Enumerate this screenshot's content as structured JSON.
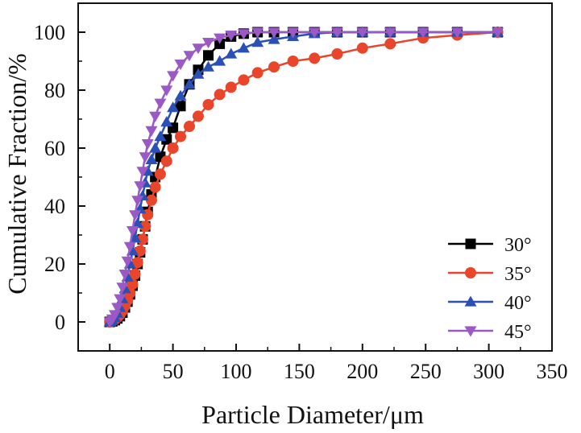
{
  "chart_data": {
    "type": "line",
    "title": "",
    "xlabel": "Particle Diameter/μm",
    "ylabel": "Cumulative Fraction/%",
    "xlim": [
      -25,
      350
    ],
    "ylim": [
      -10,
      110
    ],
    "xticks": [
      0,
      50,
      100,
      150,
      200,
      250,
      300,
      350
    ],
    "yticks": [
      0,
      20,
      40,
      60,
      80,
      100
    ],
    "xtick_labels": [
      "0",
      "50",
      "100",
      "150",
      "200",
      "250",
      "300",
      "350"
    ],
    "ytick_labels": [
      "0",
      "20",
      "40",
      "60",
      "80",
      "100"
    ],
    "grid": false,
    "legend_position": "bottom-right",
    "series": [
      {
        "name": "30°",
        "color": "#000000",
        "marker": "square",
        "x": [
          0,
          2,
          4,
          6,
          8,
          10,
          12,
          14,
          16,
          18,
          20,
          22,
          24,
          26,
          28,
          30,
          33,
          36,
          40,
          45,
          50,
          56,
          63,
          70,
          78,
          87,
          96,
          106,
          117,
          130,
          145,
          162,
          180,
          200,
          222,
          248,
          275,
          307
        ],
        "y": [
          0,
          0.2,
          0.6,
          1.2,
          2,
          3.2,
          5,
          7,
          9.5,
          12.5,
          16,
          20,
          24,
          28.5,
          33,
          38,
          44,
          50,
          57,
          63,
          67,
          74.5,
          82,
          87,
          92,
          96,
          98.5,
          99.5,
          100,
          100,
          100,
          100,
          100,
          100,
          100,
          100,
          100,
          100
        ]
      },
      {
        "name": "35°",
        "color": "#e8452a",
        "marker": "circle",
        "x": [
          0,
          2,
          4,
          6,
          8,
          10,
          12,
          14,
          16,
          18,
          20,
          22,
          24,
          26,
          28,
          30,
          33,
          36,
          40,
          45,
          50,
          56,
          63,
          70,
          78,
          87,
          96,
          106,
          117,
          130,
          145,
          162,
          180,
          200,
          222,
          248,
          275,
          307
        ],
        "y": [
          0,
          0.3,
          0.8,
          1.5,
          2.5,
          3.8,
          5.5,
          7.5,
          10,
          13,
          16.5,
          20.5,
          24.5,
          28.5,
          33,
          37,
          42,
          46.5,
          51,
          55.5,
          60,
          64,
          67.5,
          71,
          75,
          78.5,
          81,
          83.5,
          86,
          88,
          90,
          91,
          92.5,
          94.5,
          96,
          98,
          99,
          100
        ]
      },
      {
        "name": "40°",
        "color": "#2a4fb5",
        "marker": "triangle-up",
        "x": [
          0,
          2,
          4,
          6,
          8,
          10,
          12,
          14,
          16,
          18,
          20,
          22,
          24,
          26,
          28,
          30,
          33,
          36,
          40,
          45,
          50,
          56,
          63,
          70,
          78,
          87,
          96,
          106,
          117,
          130,
          145,
          162,
          180,
          200,
          222,
          248,
          275,
          307
        ],
        "y": [
          0,
          0.5,
          1.5,
          3,
          5,
          8,
          11.5,
          15.5,
          20,
          24.5,
          29,
          34,
          39,
          43.5,
          48,
          52,
          56,
          60,
          64,
          69,
          74,
          78,
          82,
          85.5,
          88,
          90,
          92.5,
          94.5,
          96.5,
          97.5,
          98.5,
          99.5,
          100,
          100,
          100,
          100,
          100,
          100
        ]
      },
      {
        "name": "45°",
        "color": "#9b59c6",
        "marker": "triangle-down",
        "x": [
          0,
          2,
          4,
          6,
          8,
          10,
          12,
          14,
          16,
          18,
          20,
          22,
          24,
          26,
          28,
          30,
          33,
          36,
          40,
          45,
          50,
          56,
          63,
          70,
          78,
          87,
          96,
          106,
          117,
          130,
          145,
          162,
          180,
          200,
          222,
          248,
          275,
          307
        ],
        "y": [
          0,
          1,
          2.5,
          5,
          8,
          12,
          16.5,
          21,
          26,
          31.5,
          37,
          42,
          47,
          52,
          57,
          61.5,
          66,
          71,
          75.5,
          80,
          85,
          89,
          92,
          94.5,
          96.5,
          98,
          99,
          99.5,
          100,
          100,
          100,
          100,
          100,
          100,
          100,
          100,
          100,
          100
        ]
      }
    ]
  }
}
